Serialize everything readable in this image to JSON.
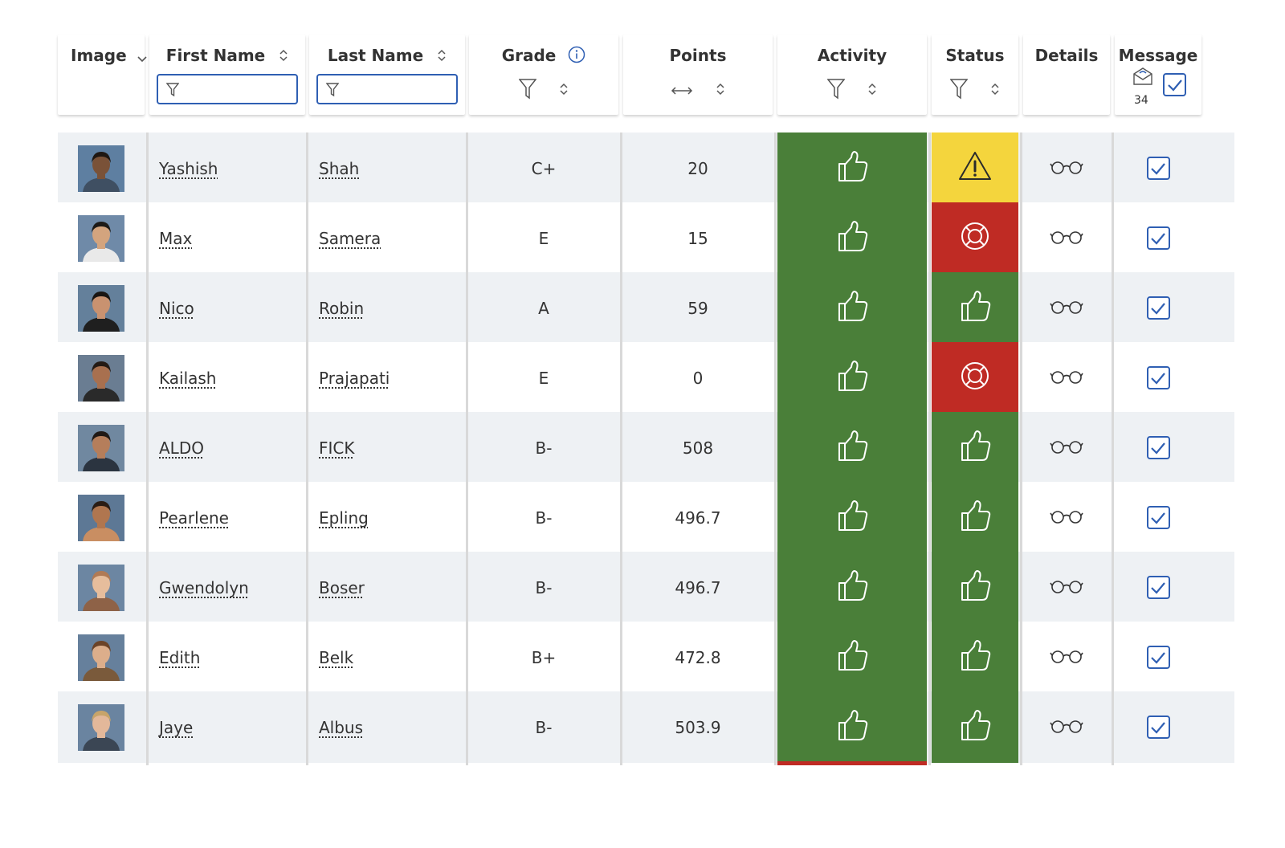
{
  "columns": {
    "image": "Image",
    "first_name": "First Name",
    "last_name": "Last Name",
    "grade": "Grade",
    "points": "Points",
    "activity": "Activity",
    "status": "Status",
    "details": "Details",
    "message": "Message"
  },
  "filters": {
    "first_name_value": "",
    "last_name_value": ""
  },
  "message_count": "34",
  "colors": {
    "green": "#4a7f39",
    "red": "#bf2b24",
    "yellow": "#f4d53d",
    "accent_blue": "#2f5fb3"
  },
  "students": [
    {
      "first": "Yashish",
      "last": "Shah",
      "grade": "C+",
      "points": "20",
      "activity": "thumbs-up",
      "status": "warning",
      "avatar": {
        "bg": "#5e7fa1",
        "skin": "#7a5238",
        "hair": "#1f1712",
        "shirt": "#3f4f62"
      }
    },
    {
      "first": "Max",
      "last": "Samera",
      "grade": "E",
      "points": "15",
      "activity": "thumbs-up",
      "status": "lifebuoy",
      "avatar": {
        "bg": "#6f8aa8",
        "skin": "#d3a47e",
        "hair": "#1d1a17",
        "shirt": "#e9e9e9"
      }
    },
    {
      "first": "Nico",
      "last": "Robin",
      "grade": "A",
      "points": "59",
      "activity": "thumbs-up",
      "status": "thumbs-up",
      "avatar": {
        "bg": "#64809b",
        "skin": "#c99270",
        "hair": "#1a1512",
        "shirt": "#1f1f1f"
      }
    },
    {
      "first": "Kailash",
      "last": "Prajapati",
      "grade": "E",
      "points": "0",
      "activity": "thumbs-up",
      "status": "lifebuoy",
      "avatar": {
        "bg": "#6a7d92",
        "skin": "#a8704f",
        "hair": "#241a14",
        "shirt": "#2a2a2a"
      }
    },
    {
      "first": "ALDO",
      "last": "FICK",
      "grade": "B-",
      "points": "508",
      "activity": "thumbs-up",
      "status": "thumbs-up",
      "avatar": {
        "bg": "#7088a0",
        "skin": "#b57e5b",
        "hair": "#201915",
        "shirt": "#2b3440"
      }
    },
    {
      "first": "Pearlene",
      "last": "Epling",
      "grade": "B-",
      "points": "496.7",
      "activity": "thumbs-up",
      "status": "thumbs-up",
      "avatar": {
        "bg": "#5d7895",
        "skin": "#b0764f",
        "hair": "#2a1c14",
        "shirt": "#c98e62"
      }
    },
    {
      "first": "Gwendolyn",
      "last": "Boser",
      "grade": "B-",
      "points": "496.7",
      "activity": "thumbs-up",
      "status": "thumbs-up",
      "avatar": {
        "bg": "#6c86a2",
        "skin": "#e6bd9c",
        "hair": "#b07a55",
        "shirt": "#8e6247"
      }
    },
    {
      "first": "Edith",
      "last": "Belk",
      "grade": "B+",
      "points": "472.8",
      "activity": "thumbs-up",
      "status": "thumbs-up",
      "avatar": {
        "bg": "#66809c",
        "skin": "#dcae8b",
        "hair": "#6b4327",
        "shirt": "#7a5a3b"
      }
    },
    {
      "first": "Jaye",
      "last": "Albus",
      "grade": "B-",
      "points": "503.9",
      "activity": "thumbs-up",
      "status": "thumbs-up",
      "avatar": {
        "bg": "#6a84a0",
        "skin": "#e3b89a",
        "hair": "#c7a46a",
        "shirt": "#3b4654"
      }
    }
  ]
}
